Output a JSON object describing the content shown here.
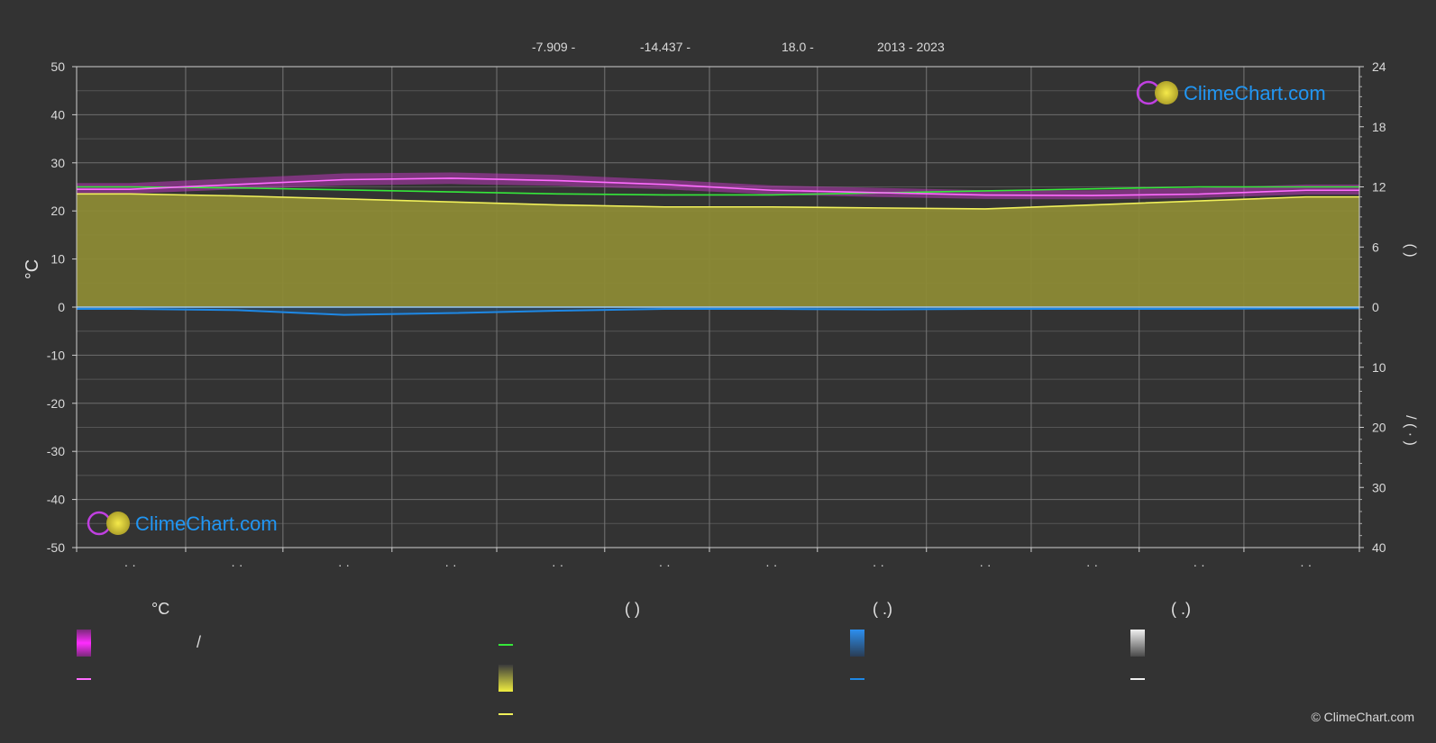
{
  "header": {
    "lat": "-7.909 -",
    "lon": "-14.437 -",
    "elev": "18.0 -",
    "years": "2013 - 2023"
  },
  "watermark": "ClimeChart.com",
  "copyright": "© ClimeChart.com",
  "legend": {
    "col1_head": "°C",
    "col1_row1": "/",
    "col2_head": "(            )",
    "col3_head": "(    .)",
    "col4_head": "(    .)"
  },
  "colors": {
    "background": "#333333",
    "grid": "#6a6a6a",
    "sunshine_fill": "#8c8a35",
    "daylight": "#35e83a",
    "sunshine_line": "#f0f05a",
    "temp_band": "#d238d2",
    "temp_line": "#ff6cff",
    "rain": "#1e88e5",
    "snow_line": "#f0f0f0"
  },
  "chart_data": {
    "type": "line",
    "x_tick_labels": [
      "· ·",
      "· ·",
      "· ·",
      "· ·",
      "· ·",
      "· ·",
      "· ·",
      "· ·",
      "· ·",
      "· ·",
      "· ·",
      "· ·"
    ],
    "months": 12,
    "y_left": {
      "label": "°C",
      "range": [
        -50,
        50
      ],
      "ticks": [
        50,
        40,
        30,
        20,
        10,
        0,
        -10,
        -20,
        -30,
        -40,
        -50
      ]
    },
    "y_right_top": {
      "range": [
        0,
        24
      ],
      "ticks": [
        24,
        18,
        12,
        6,
        0
      ],
      "label": "(    )"
    },
    "y_right_bottom": {
      "range": [
        0,
        40
      ],
      "ticks": [
        10,
        20,
        30,
        40
      ],
      "label": "/ (   · )"
    },
    "grid": true,
    "series": [
      {
        "key": "daylight",
        "axis": "right_top",
        "values": [
          12.0,
          11.9,
          11.7,
          11.5,
          11.3,
          11.2,
          11.2,
          11.4,
          11.6,
          11.8,
          12.0,
          12.0
        ]
      },
      {
        "key": "sunshine",
        "axis": "right_top",
        "values": [
          11.3,
          11.1,
          10.8,
          10.5,
          10.2,
          10.0,
          10.0,
          9.9,
          9.8,
          10.2,
          10.6,
          11.0
        ]
      },
      {
        "key": "temp_mean",
        "axis": "left",
        "values": [
          24.5,
          25.5,
          26.5,
          26.8,
          26.3,
          25.5,
          24.3,
          23.8,
          23.3,
          23.2,
          23.5,
          24.3
        ]
      },
      {
        "key": "temp_max",
        "axis": "left",
        "values": [
          25.8,
          26.8,
          27.8,
          28.0,
          27.5,
          26.5,
          25.3,
          24.8,
          24.3,
          24.3,
          24.8,
          25.5
        ]
      },
      {
        "key": "temp_min",
        "axis": "left",
        "values": [
          23.6,
          24.5,
          25.3,
          25.6,
          25.2,
          24.5,
          23.4,
          22.9,
          22.5,
          22.4,
          22.7,
          23.4
        ]
      },
      {
        "key": "precip",
        "axis": "right_bottom",
        "values": [
          0.3,
          0.5,
          1.3,
          1.0,
          0.6,
          0.3,
          0.3,
          0.4,
          0.3,
          0.3,
          0.3,
          0.2
        ]
      },
      {
        "key": "snow",
        "axis": "right_bottom",
        "values": [
          0,
          0,
          0,
          0,
          0,
          0,
          0,
          0,
          0,
          0,
          0,
          0
        ]
      }
    ]
  }
}
